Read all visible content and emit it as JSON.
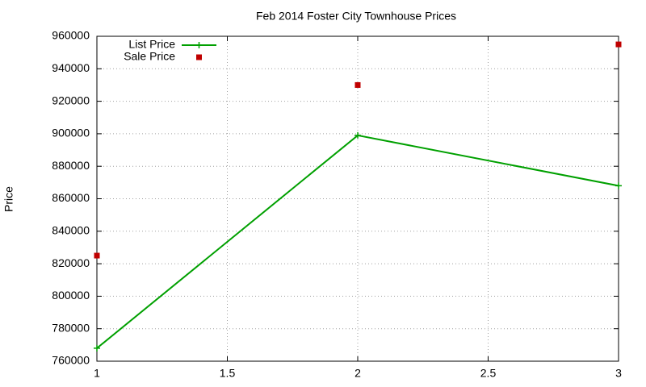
{
  "chart_data": {
    "type": "line",
    "title": "Feb 2014 Foster City Townhouse Prices",
    "y_label": "Price",
    "x": [
      1,
      2,
      3
    ],
    "series": [
      {
        "name": "List Price",
        "color": "#00a000",
        "style": "linespoints",
        "marker": "plus",
        "values": [
          768000,
          899000,
          868000
        ]
      },
      {
        "name": "Sale Price",
        "color": "#c00000",
        "style": "points",
        "marker": "square",
        "values": [
          825000,
          930000,
          955000
        ]
      }
    ],
    "xlim": [
      1,
      3
    ],
    "xticks": [
      1,
      1.5,
      2,
      2.5,
      3
    ],
    "ylim": [
      760000,
      960000
    ],
    "yticks": [
      760000,
      780000,
      800000,
      820000,
      840000,
      860000,
      880000,
      900000,
      920000,
      940000,
      960000
    ],
    "grid": true,
    "legend": "top-left"
  }
}
